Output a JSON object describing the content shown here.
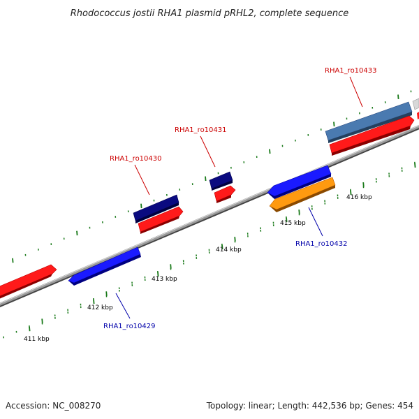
{
  "header": {
    "title": "Rhodococcus jostii RHA1 plasmid pRHL2, complete sequence"
  },
  "footer": {
    "accession": "Accession: NC_008270",
    "summary": "Topology: linear; Length: 442,536 bp; Genes: 454"
  },
  "colors": {
    "backbone": "#8a8a8a",
    "tick_dot": "#1a7a1a",
    "forward_gene": "#ff1a1a",
    "reverse_gene": "#1a1aff",
    "dark_gene": "#0a0a80",
    "steel_gene": "#4a7ab0",
    "orange_gene": "#ff9a10",
    "forward_label": "#cc0000",
    "reverse_label": "#0000aa"
  },
  "ruler": {
    "ticks": [
      {
        "label": "411 kbp"
      },
      {
        "label": "412 kbp"
      },
      {
        "label": "413 kbp"
      },
      {
        "label": "414 kbp"
      },
      {
        "label": "415 kbp"
      },
      {
        "label": "416 kbp"
      }
    ]
  },
  "features": [
    {
      "name": "RHA1_ro10429",
      "strand": "reverse"
    },
    {
      "name": "RHA1_ro10430",
      "strand": "forward"
    },
    {
      "name": "RHA1_ro10431",
      "strand": "forward"
    },
    {
      "name": "RHA1_ro10432",
      "strand": "reverse"
    },
    {
      "name": "RHA1_ro10433",
      "strand": "forward"
    }
  ]
}
